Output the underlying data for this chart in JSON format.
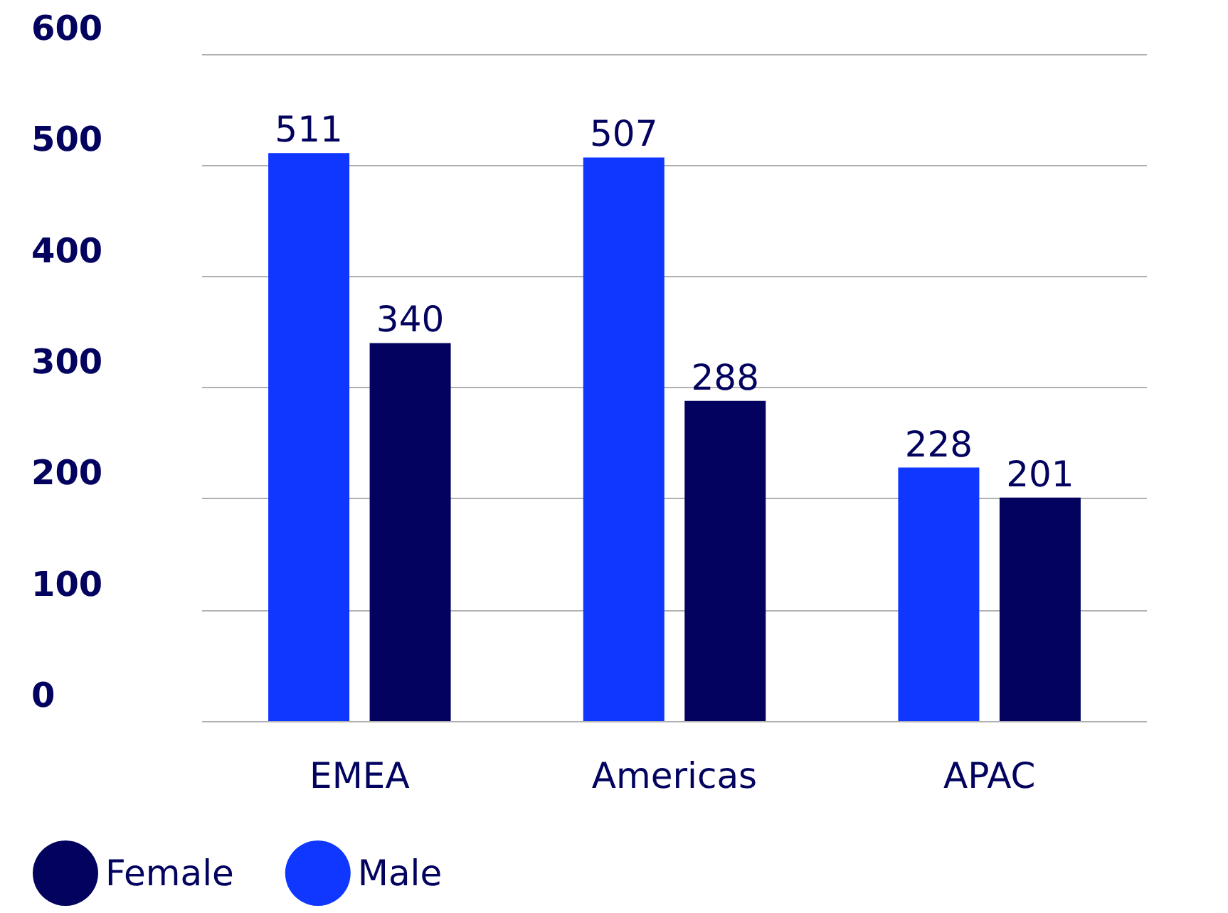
{
  "chart_data": {
    "type": "bar",
    "categories": [
      "EMEA",
      "Americas",
      "APAC"
    ],
    "series": [
      {
        "name": "Male",
        "color": "#0f37ff",
        "values": [
          511,
          507,
          228
        ]
      },
      {
        "name": "Female",
        "color": "#03035f",
        "values": [
          340,
          288,
          201
        ]
      }
    ],
    "ylim": [
      0,
      600
    ],
    "yticks": [
      0,
      100,
      200,
      300,
      400,
      500,
      600
    ],
    "grid": "y",
    "legend": "bottom left",
    "data_labels": true
  }
}
